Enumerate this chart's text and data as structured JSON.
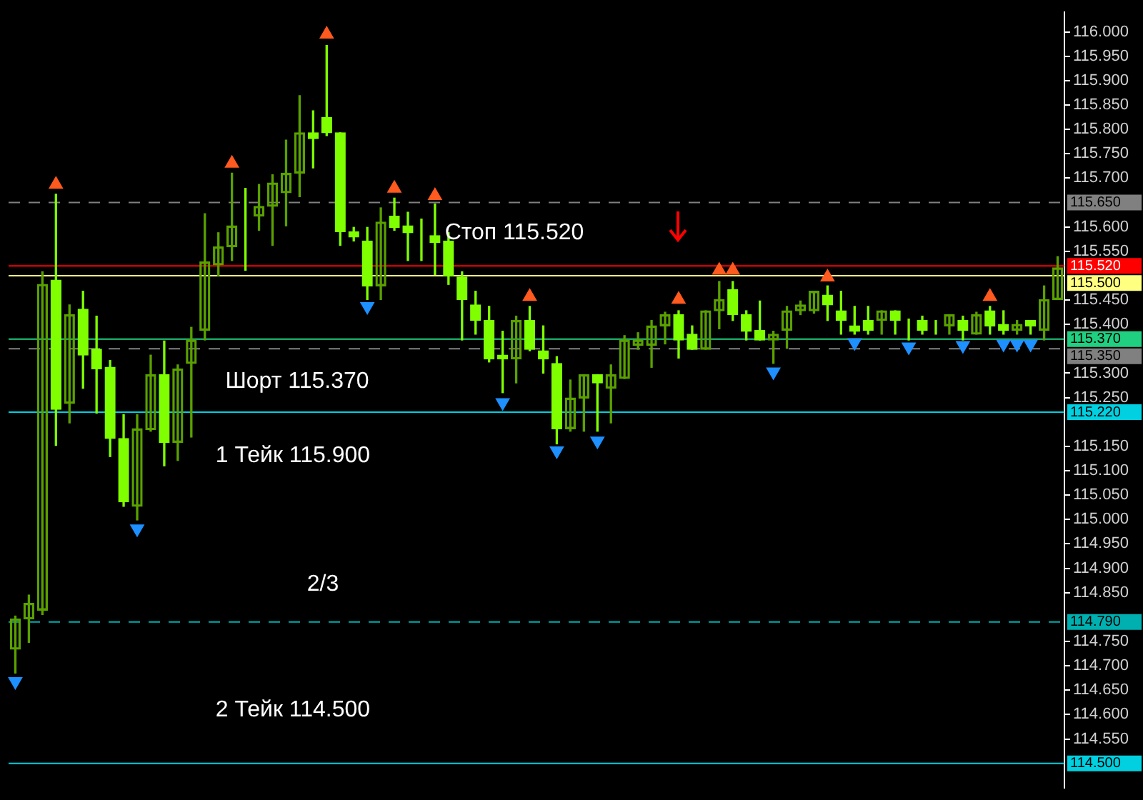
{
  "chart_data": {
    "type": "candlestick",
    "colors": [
      "#5aa000",
      "#5aa000",
      "#5aa000",
      "#7fff00",
      "#5aa000",
      "#7fff00",
      "#7fff00",
      "#7fff00",
      "#7fff00",
      "#5aa000",
      "#5aa000",
      "#7fff00",
      "#5aa000",
      "#5aa000",
      "#5aa000",
      "#5aa000",
      "#5aa000",
      "#7fff00",
      "#5aa000",
      "#5aa000",
      "#5aa000",
      "#5aa000",
      "#7fff00",
      "#7fff00",
      "#7fff00",
      "#7fff00",
      "#7fff00",
      "#5aa000",
      "#7fff00",
      "#7fff00",
      "#7fff00",
      "#7fff00",
      "#7fff00",
      "#7fff00",
      "#7fff00",
      "#7fff00",
      "#7fff00",
      "#5aa000",
      "#7fff00",
      "#7fff00",
      "#7fff00",
      "#5aa000",
      "#5aa000",
      "#7fff00",
      "#5aa000",
      "#5aa000",
      "#5aa000",
      "#5aa000",
      "#5aa000",
      "#7fff00",
      "#7fff00",
      "#5aa000",
      "#5aa000",
      "#7fff00",
      "#7fff00",
      "#7fff00",
      "#5aa000",
      "#5aa000",
      "#5aa000",
      "#5aa000",
      "#7fff00",
      "#7fff00",
      "#7fff00",
      "#7fff00",
      "#5aa000",
      "#7fff00",
      "#7fff00",
      "#7fff00",
      "#7fff00",
      "#5aa000",
      "#7fff00",
      "#5aa000",
      "#7fff00",
      "#7fff00",
      "#5aa000",
      "#7fff00",
      "#5aa000",
      "#5aa000"
    ],
    "categories": [
      null,
      null,
      null,
      null,
      null,
      null,
      null,
      null,
      null,
      null,
      null,
      null,
      null,
      null,
      null,
      null,
      null,
      null,
      null,
      null,
      null,
      null,
      null,
      null,
      null,
      null,
      null,
      null,
      null,
      null,
      null,
      null,
      null,
      null,
      null,
      null,
      null,
      null,
      null,
      null,
      null,
      null,
      null,
      null,
      null,
      null,
      null,
      null,
      null,
      null,
      null,
      null,
      null,
      null,
      null,
      null,
      null,
      null,
      null,
      null,
      null,
      null,
      null,
      null,
      null,
      null,
      null,
      null,
      null,
      null,
      null,
      null,
      null,
      null,
      null,
      null,
      null,
      null
    ],
    "ohlc": [
      [
        114.734,
        114.802,
        114.685,
        114.796
      ],
      [
        114.796,
        114.845,
        114.748,
        114.828
      ],
      [
        114.814,
        115.508,
        114.805,
        115.482
      ],
      [
        115.491,
        115.667,
        115.152,
        115.226
      ],
      [
        115.238,
        115.44,
        115.198,
        115.42
      ],
      [
        115.431,
        115.468,
        115.269,
        115.337
      ],
      [
        115.349,
        115.417,
        115.218,
        115.309
      ],
      [
        115.312,
        115.326,
        115.129,
        115.166
      ],
      [
        115.166,
        115.215,
        115.027,
        115.036
      ],
      [
        115.027,
        115.215,
        114.999,
        115.186
      ],
      [
        115.184,
        115.337,
        115.181,
        115.297
      ],
      [
        115.297,
        115.366,
        115.11,
        115.158
      ],
      [
        115.158,
        115.317,
        115.121,
        115.309
      ],
      [
        115.32,
        115.394,
        115.169,
        115.368
      ],
      [
        115.388,
        115.627,
        115.368,
        115.528
      ],
      [
        115.522,
        115.588,
        115.499,
        115.559
      ],
      [
        115.559,
        115.71,
        115.531,
        115.602
      ],
      [
        115.61,
        115.679,
        115.511,
        115.61
      ],
      [
        115.622,
        115.687,
        115.593,
        115.642
      ],
      [
        115.642,
        115.707,
        115.562,
        115.69
      ],
      [
        115.67,
        115.778,
        115.602,
        115.71
      ],
      [
        115.71,
        115.869,
        115.662,
        115.793
      ],
      [
        115.793,
        115.838,
        115.721,
        115.781
      ],
      [
        115.824,
        115.972,
        115.787,
        115.793
      ],
      [
        115.793,
        115.793,
        115.562,
        115.59
      ],
      [
        115.59,
        115.599,
        115.571,
        115.579
      ],
      [
        115.571,
        115.599,
        115.451,
        115.479
      ],
      [
        115.479,
        115.639,
        115.451,
        115.61
      ],
      [
        115.622,
        115.659,
        115.593,
        115.599
      ],
      [
        115.602,
        115.63,
        115.531,
        115.588
      ],
      [
        115.582,
        115.616,
        115.531,
        115.582
      ],
      [
        115.582,
        115.647,
        115.502,
        115.568
      ],
      [
        115.571,
        115.588,
        115.482,
        115.499
      ],
      [
        115.497,
        115.508,
        115.368,
        115.451
      ],
      [
        115.44,
        115.468,
        115.38,
        115.408
      ],
      [
        115.408,
        115.437,
        115.323,
        115.329
      ],
      [
        115.337,
        115.386,
        115.26,
        115.329
      ],
      [
        115.329,
        115.417,
        115.28,
        115.408
      ],
      [
        115.408,
        115.437,
        115.346,
        115.349
      ],
      [
        115.346,
        115.397,
        115.3,
        115.329
      ],
      [
        115.32,
        115.334,
        115.155,
        115.186
      ],
      [
        115.186,
        115.286,
        115.181,
        115.249
      ],
      [
        115.249,
        115.297,
        115.181,
        115.297
      ],
      [
        115.297,
        115.297,
        115.181,
        115.28
      ],
      [
        115.269,
        115.317,
        115.198,
        115.297
      ],
      [
        115.289,
        115.377,
        115.289,
        115.368
      ],
      [
        115.357,
        115.383,
        115.349,
        115.368
      ],
      [
        115.357,
        115.408,
        115.312,
        115.397
      ],
      [
        115.397,
        115.425,
        115.36,
        115.42
      ],
      [
        115.42,
        115.428,
        115.331,
        115.368
      ],
      [
        115.38,
        115.397,
        115.349,
        115.349
      ],
      [
        115.349,
        115.428,
        115.349,
        115.428
      ],
      [
        115.428,
        115.488,
        115.391,
        115.451
      ],
      [
        115.471,
        115.488,
        115.408,
        115.42
      ],
      [
        115.42,
        115.428,
        115.368,
        115.386
      ],
      [
        115.388,
        115.448,
        115.368,
        115.368
      ],
      [
        115.368,
        115.386,
        115.32,
        115.38
      ],
      [
        115.388,
        115.437,
        115.351,
        115.428
      ],
      [
        115.428,
        115.448,
        115.42,
        115.44
      ],
      [
        115.428,
        115.468,
        115.423,
        115.468
      ],
      [
        115.46,
        115.479,
        115.408,
        115.44
      ],
      [
        115.428,
        115.468,
        115.38,
        115.408
      ],
      [
        115.397,
        115.437,
        115.38,
        115.386
      ],
      [
        115.408,
        115.437,
        115.38,
        115.388
      ],
      [
        115.408,
        115.428,
        115.38,
        115.428
      ],
      [
        115.428,
        115.428,
        115.38,
        115.408
      ],
      [
        115.411,
        115.411,
        115.368,
        115.411
      ],
      [
        115.408,
        115.417,
        115.38,
        115.388
      ],
      [
        115.4,
        115.408,
        115.38,
        115.4
      ],
      [
        115.397,
        115.42,
        115.38,
        115.42
      ],
      [
        115.408,
        115.417,
        115.368,
        115.388
      ],
      [
        115.38,
        115.425,
        115.38,
        115.42
      ],
      [
        115.428,
        115.437,
        115.38,
        115.397
      ],
      [
        115.4,
        115.428,
        115.38,
        115.388
      ],
      [
        115.388,
        115.408,
        115.38,
        115.4
      ],
      [
        115.408,
        115.408,
        115.38,
        115.397
      ],
      [
        115.388,
        115.479,
        115.368,
        115.451
      ],
      [
        115.451,
        115.539,
        115.451,
        115.516
      ]
    ],
    "series": [
      {
        "type": "scatter",
        "marker": "triangle",
        "color": "#ff5a1f",
        "values": [
          null,
          null,
          null,
          115.687,
          null,
          null,
          null,
          null,
          null,
          null,
          null,
          null,
          null,
          null,
          null,
          null,
          115.73,
          null,
          null,
          null,
          null,
          null,
          null,
          115.995,
          null,
          null,
          null,
          null,
          115.679,
          null,
          null,
          115.664,
          null,
          null,
          null,
          null,
          null,
          null,
          115.457,
          null,
          null,
          null,
          null,
          null,
          null,
          null,
          null,
          null,
          null,
          115.451,
          null,
          null,
          115.511,
          115.511,
          null,
          null,
          null,
          null,
          null,
          null,
          115.497,
          null,
          null,
          null,
          null,
          null,
          null,
          null,
          null,
          null,
          null,
          null,
          115.457,
          null,
          null,
          null,
          null,
          null
        ]
      },
      {
        "type": "scatter",
        "marker": "triangle",
        "color": "#1e90ff",
        "values": [
          114.668,
          null,
          null,
          null,
          null,
          null,
          null,
          null,
          null,
          114.981,
          null,
          null,
          null,
          null,
          null,
          null,
          null,
          null,
          null,
          null,
          null,
          null,
          null,
          null,
          null,
          null,
          115.437,
          null,
          null,
          null,
          null,
          null,
          null,
          null,
          null,
          null,
          115.24,
          null,
          null,
          null,
          115.141,
          null,
          null,
          115.161,
          null,
          null,
          null,
          null,
          null,
          null,
          null,
          null,
          null,
          null,
          null,
          null,
          115.303,
          null,
          null,
          null,
          null,
          null,
          115.363,
          null,
          null,
          null,
          115.354,
          null,
          null,
          null,
          115.357,
          null,
          null,
          115.36,
          115.36,
          115.36,
          null,
          null
        ]
      }
    ],
    "ylim": [
      114.45,
      116.04
    ],
    "yticks": [
      {
        "value": 116,
        "label": "116.000"
      },
      {
        "value": 115.95,
        "label": "115.950"
      },
      {
        "value": 115.9,
        "label": "115.900"
      },
      {
        "value": 115.85,
        "label": "115.850"
      },
      {
        "value": 115.8,
        "label": "115.800"
      },
      {
        "value": 115.75,
        "label": "115.750"
      },
      {
        "value": 115.7,
        "label": "115.700"
      },
      {
        "value": 115.6,
        "label": "115.600"
      },
      {
        "value": 115.55,
        "label": "115.550"
      },
      {
        "value": 115.45,
        "label": "115.450"
      },
      {
        "value": 115.4,
        "label": "115.400"
      },
      {
        "value": 115.3,
        "label": "115.300"
      },
      {
        "value": 115.25,
        "label": "115.250"
      },
      {
        "value": 115.15,
        "label": "115.150"
      },
      {
        "value": 115.1,
        "label": "115.100"
      },
      {
        "value": 115.05,
        "label": "115.050"
      },
      {
        "value": 115,
        "label": "115.000"
      },
      {
        "value": 114.95,
        "label": "114.950"
      },
      {
        "value": 114.9,
        "label": "114.900"
      },
      {
        "value": 114.85,
        "label": "114.850"
      },
      {
        "value": 114.75,
        "label": "114.750"
      },
      {
        "value": 114.7,
        "label": "114.700"
      },
      {
        "value": 114.65,
        "label": "114.650"
      },
      {
        "value": 114.6,
        "label": "114.600"
      },
      {
        "value": 114.55,
        "label": "114.550"
      }
    ],
    "ref_lines": [
      {
        "axis": "y",
        "value": 115.65,
        "label": "115.650",
        "color": "#808080",
        "line_style": "dashed"
      },
      {
        "axis": "y",
        "value": 115.52,
        "label": "115.520",
        "color": "#ff0000",
        "line_style": "solid"
      },
      {
        "axis": "y",
        "value": 115.5,
        "label": "115.500",
        "color": "#ffff80",
        "line_style": "solid"
      },
      {
        "axis": "y",
        "value": 115.37,
        "label": "115.370",
        "color": "#20d080",
        "line_style": "solid"
      },
      {
        "axis": "y",
        "value": 115.35,
        "label": "115.350",
        "color": "#808080",
        "line_style": "dashed"
      },
      {
        "axis": "y",
        "value": 115.22,
        "label": "115.220",
        "color": "#00d0e0",
        "line_style": "solid"
      },
      {
        "axis": "y",
        "value": 114.79,
        "label": "114.790",
        "color": "#00b0b0",
        "line_style": "dashed"
      },
      {
        "axis": "y",
        "value": 114.5,
        "label": "114.500",
        "color": "#00d0e0",
        "line_style": "solid"
      }
    ],
    "annotations": [
      "Стоп 115.520",
      "Шорт 115.370",
      "1 Тейк 115.900",
      "2/3",
      "2 Тейк 114.500"
    ],
    "grid": false,
    "legend": false
  }
}
